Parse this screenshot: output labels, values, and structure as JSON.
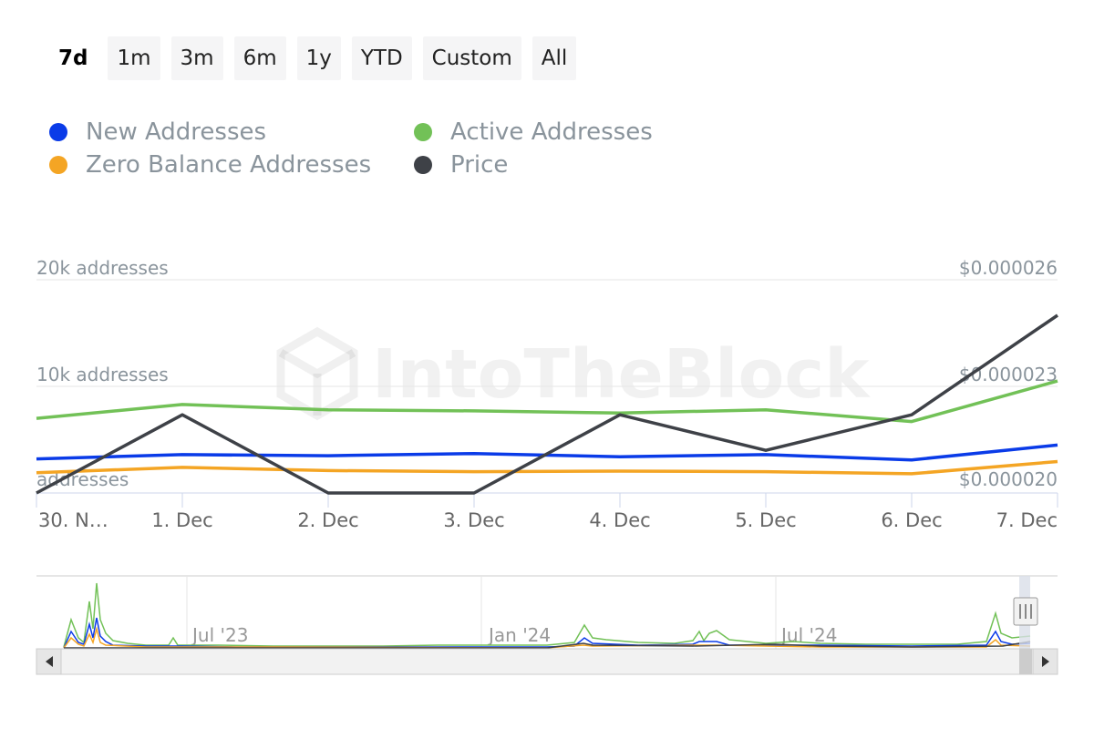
{
  "range_selector": {
    "buttons": [
      "7d",
      "1m",
      "3m",
      "6m",
      "1y",
      "YTD",
      "Custom",
      "All"
    ],
    "active": "7d"
  },
  "legend": [
    {
      "label": "New Addresses",
      "color": "#0a3be8"
    },
    {
      "label": "Active Addresses",
      "color": "#72c157"
    },
    {
      "label": "Zero Balance Addresses",
      "color": "#f4a524"
    },
    {
      "label": "Price",
      "color": "#3e4147"
    }
  ],
  "watermark": "IntoTheBlock",
  "chart_data": {
    "type": "line",
    "x": [
      "30. N…",
      "1. Dec",
      "2. Dec",
      "3. Dec",
      "4. Dec",
      "5. Dec",
      "6. Dec",
      "7. Dec"
    ],
    "y_left": {
      "ticks": [
        "20k addresses",
        "10k addresses",
        "addresses"
      ],
      "range": [
        0,
        20000
      ]
    },
    "y_right": {
      "ticks": [
        "$0.000026",
        "$0.000023",
        "$0.000020"
      ],
      "range": [
        2e-05,
        2.6e-05
      ]
    },
    "series": [
      {
        "name": "New Addresses",
        "axis": "left",
        "color": "#0a3be8",
        "values": [
          3200,
          3600,
          3500,
          3700,
          3400,
          3600,
          3100,
          4500
        ]
      },
      {
        "name": "Active Addresses",
        "axis": "left",
        "color": "#72c157",
        "values": [
          7000,
          8300,
          7800,
          7700,
          7500,
          7800,
          6700,
          10500
        ]
      },
      {
        "name": "Zero Balance Addresses",
        "axis": "left",
        "color": "#f4a524",
        "values": [
          1900,
          2400,
          2100,
          2000,
          2050,
          2000,
          1800,
          2950
        ]
      },
      {
        "name": "Price",
        "axis": "right",
        "color": "#3e4147",
        "values": [
          2e-05,
          2.22e-05,
          2e-05,
          2e-05,
          2.22e-05,
          2.12e-05,
          2.22e-05,
          2.5e-05
        ]
      }
    ],
    "legend_position": "top-left",
    "grid": true
  },
  "navigator": {
    "labels": [
      "Jul '23",
      "Jan '24",
      "Jul '24"
    ],
    "scroll_left_icon": "triangle-left",
    "scroll_right_icon": "triangle-right"
  }
}
